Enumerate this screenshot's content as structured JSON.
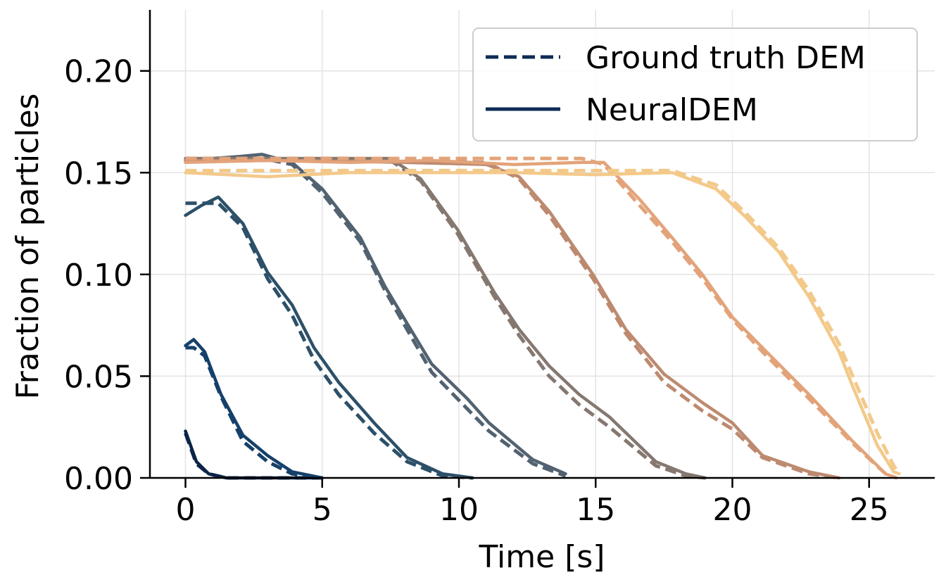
{
  "chart_data": {
    "type": "line",
    "title": "",
    "xlabel": "Time [s]",
    "ylabel": "Fraction of particles",
    "xlim": [
      -1.3,
      27.4
    ],
    "ylim": [
      0,
      0.23
    ],
    "xticks": [
      "0",
      "5",
      "10",
      "15",
      "20",
      "25"
    ],
    "yticks": [
      "0.00",
      "0.05",
      "0.10",
      "0.15",
      "0.20"
    ],
    "grid": true,
    "legend_position": "top-right",
    "legend": [
      {
        "label": "Ground truth DEM",
        "style": "dashed",
        "color": "#0d2c54"
      },
      {
        "label": "NeuralDEM",
        "style": "solid",
        "color": "#0d2c54"
      }
    ],
    "series": [
      {
        "color": "#0b2447",
        "x": [
          0,
          0.4,
          0.85,
          1.5,
          3,
          5
        ],
        "ground_truth": [
          0.022,
          0.007,
          0.002,
          0,
          0,
          0
        ],
        "neuraldem": [
          0.023,
          0.008,
          0.002,
          0,
          0,
          0
        ]
      },
      {
        "color": "#15406a",
        "x": [
          0,
          0.3,
          0.7,
          1.3,
          2.1,
          3,
          3.9,
          5
        ],
        "ground_truth": [
          0.064,
          0.064,
          0.06,
          0.04,
          0.018,
          0.008,
          0.002,
          0
        ],
        "neuraldem": [
          0.065,
          0.068,
          0.062,
          0.041,
          0.021,
          0.011,
          0.003,
          0
        ]
      },
      {
        "color": "#2d5069",
        "x": [
          0,
          0.6,
          1.2,
          2.1,
          3,
          3.9,
          4.7,
          5.6,
          6.9,
          8.1,
          9.4,
          10.5
        ],
        "ground_truth": [
          0.135,
          0.135,
          0.135,
          0.123,
          0.098,
          0.08,
          0.058,
          0.041,
          0.022,
          0.008,
          0.001,
          0
        ],
        "neuraldem": [
          0.129,
          0.134,
          0.138,
          0.125,
          0.101,
          0.085,
          0.064,
          0.047,
          0.027,
          0.01,
          0.002,
          0
        ]
      },
      {
        "color": "#526270",
        "x": [
          0,
          1,
          2,
          2.8,
          3.9,
          5,
          6.4,
          7.3,
          8.1,
          9,
          10.3,
          11.1,
          12.7,
          13.9
        ],
        "ground_truth": [
          0.157,
          0.157,
          0.157,
          0.157,
          0.154,
          0.14,
          0.116,
          0.092,
          0.073,
          0.052,
          0.034,
          0.023,
          0.007,
          0.001
        ],
        "neuraldem": [
          0.156,
          0.157,
          0.158,
          0.159,
          0.155,
          0.142,
          0.118,
          0.094,
          0.076,
          0.056,
          0.039,
          0.027,
          0.009,
          0.002
        ]
      },
      {
        "color": "#857870",
        "x": [
          0,
          3,
          6,
          7.5,
          8.6,
          9.95,
          11.3,
          12.2,
          13.3,
          14.4,
          15.5,
          17.2,
          18.3,
          19
        ],
        "ground_truth": [
          0.157,
          0.157,
          0.157,
          0.156,
          0.146,
          0.12,
          0.089,
          0.07,
          0.05,
          0.036,
          0.025,
          0.006,
          0.001,
          0
        ],
        "neuraldem": [
          0.157,
          0.157,
          0.157,
          0.157,
          0.147,
          0.122,
          0.091,
          0.073,
          0.055,
          0.041,
          0.03,
          0.008,
          0.002,
          0
        ]
      },
      {
        "color": "#bd8a70",
        "x": [
          0,
          4,
          8,
          11,
          12.2,
          13.3,
          14.9,
          16.1,
          17.5,
          18.9,
          20,
          21.1,
          22.8,
          23.9
        ],
        "ground_truth": [
          0.156,
          0.156,
          0.156,
          0.155,
          0.147,
          0.129,
          0.098,
          0.071,
          0.047,
          0.033,
          0.024,
          0.01,
          0.002,
          0
        ],
        "neuraldem": [
          0.156,
          0.156,
          0.155,
          0.154,
          0.148,
          0.131,
          0.1,
          0.073,
          0.051,
          0.037,
          0.027,
          0.011,
          0.003,
          0
        ]
      },
      {
        "color": "#e3a37a",
        "x": [
          0,
          3,
          6,
          9,
          12,
          14.5,
          15.3,
          16.6,
          17.8,
          18.9,
          20,
          21.1,
          22.8,
          24.4,
          25.6,
          26
        ],
        "ground_truth": [
          0.157,
          0.157,
          0.157,
          0.157,
          0.157,
          0.157,
          0.154,
          0.134,
          0.116,
          0.098,
          0.078,
          0.062,
          0.039,
          0.017,
          0.002,
          0
        ],
        "neuraldem": [
          0.155,
          0.156,
          0.155,
          0.156,
          0.154,
          0.155,
          0.155,
          0.137,
          0.118,
          0.1,
          0.079,
          0.064,
          0.041,
          0.018,
          0.002,
          0
        ]
      },
      {
        "color": "#f3c98a",
        "x": [
          0,
          3,
          6,
          9,
          12,
          15,
          17.8,
          19.4,
          20.5,
          21.7,
          22.8,
          23.9,
          24.4,
          25.3,
          25.9,
          26.1
        ],
        "ground_truth": [
          0.151,
          0.151,
          0.151,
          0.151,
          0.151,
          0.151,
          0.151,
          0.144,
          0.13,
          0.113,
          0.092,
          0.066,
          0.05,
          0.022,
          0.006,
          0.002
        ],
        "neuraldem": [
          0.15,
          0.148,
          0.15,
          0.15,
          0.15,
          0.149,
          0.15,
          0.142,
          0.128,
          0.111,
          0.089,
          0.062,
          0.045,
          0.016,
          0.003,
          0.002
        ]
      }
    ]
  }
}
